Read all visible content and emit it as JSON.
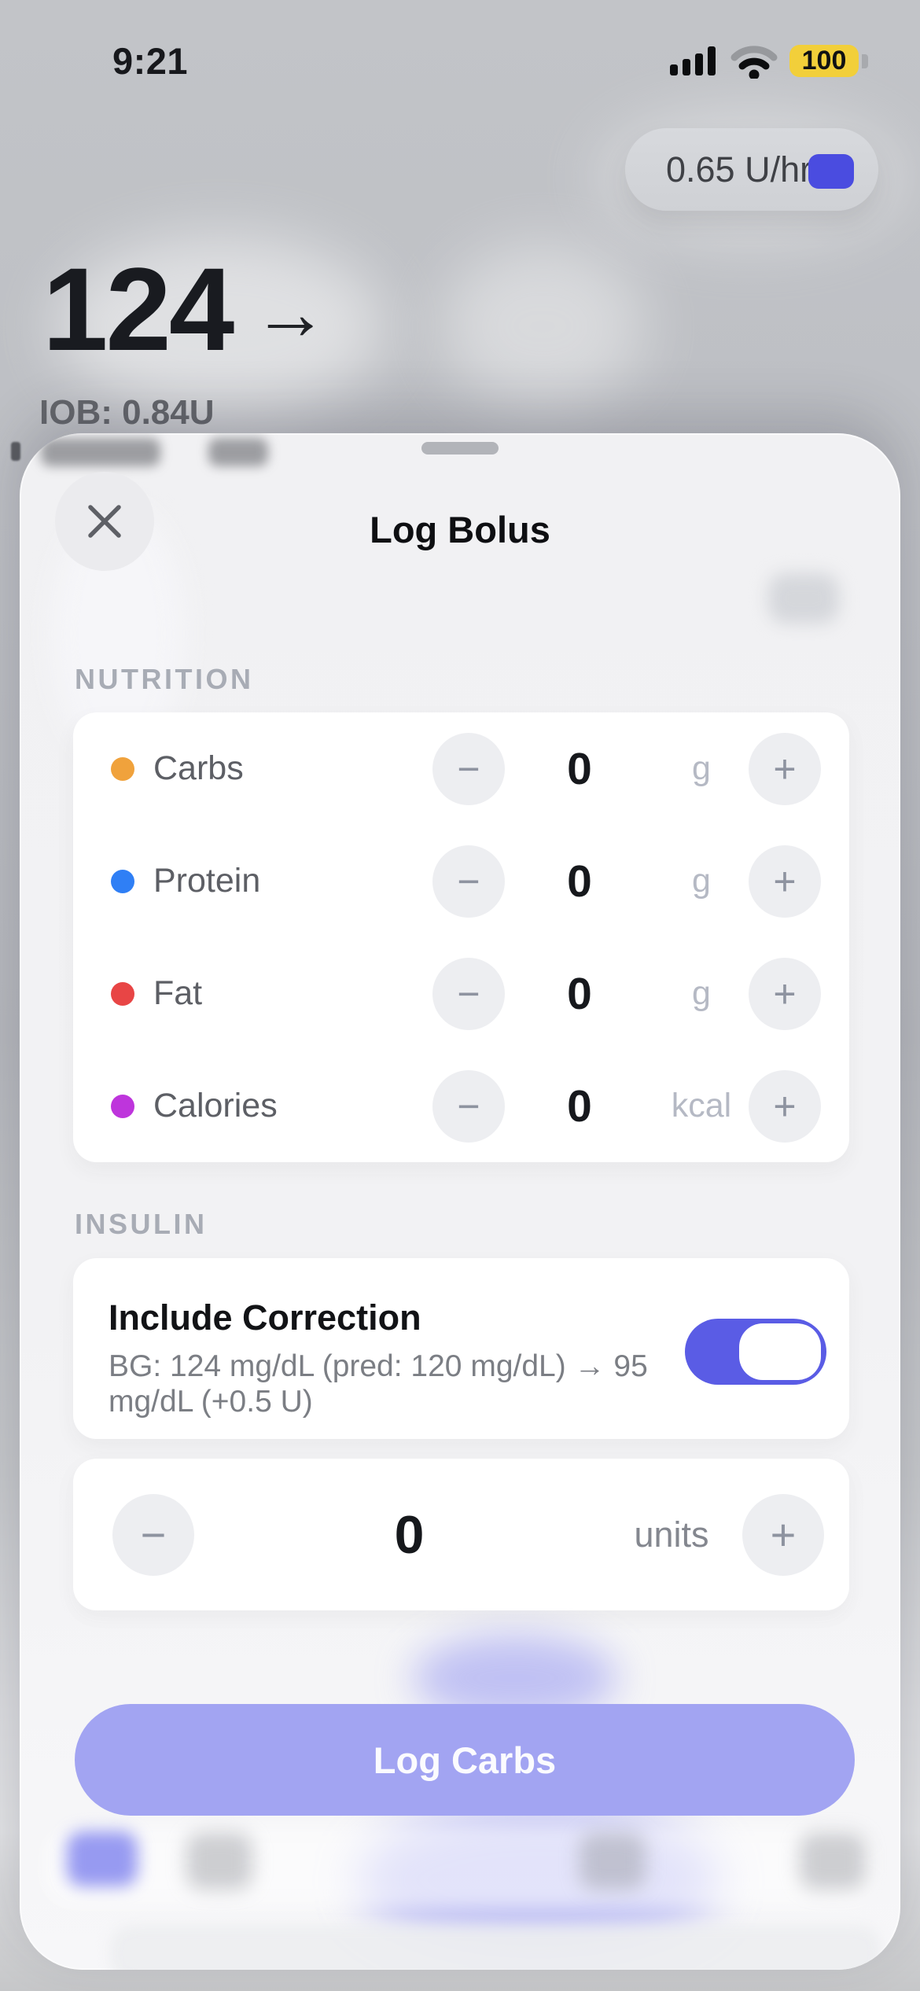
{
  "status_bar": {
    "time": "9:21",
    "battery_level": "100"
  },
  "background_app": {
    "basal_rate": "0.65 U/hr",
    "glucose_value": "124",
    "trend_arrow": "→",
    "iob_text": "IOB: 0.84U"
  },
  "sheet": {
    "title": "Log Bolus",
    "close_icon": "close-x",
    "nutrition": {
      "label": "NUTRITION",
      "minus_glyph": "−",
      "plus_glyph": "+",
      "rows": [
        {
          "name": "Carbs",
          "value": "0",
          "unit": "g",
          "dot_color": "#F0A23C"
        },
        {
          "name": "Protein",
          "value": "0",
          "unit": "g",
          "dot_color": "#2F7FF5"
        },
        {
          "name": "Fat",
          "value": "0",
          "unit": "g",
          "dot_color": "#E84545"
        },
        {
          "name": "Calories",
          "value": "0",
          "unit": "kcal",
          "dot_color": "#BE35DC"
        }
      ]
    },
    "insulin": {
      "label": "INSULIN",
      "correction": {
        "title": "Include Correction",
        "subtitle": "BG: 124 mg/dL (pred: 120 mg/dL) → 95 mg/dL (+0.5 U)",
        "enabled": true
      },
      "dose": {
        "minus_glyph": "−",
        "plus_glyph": "+",
        "value": "0",
        "unit": "units"
      }
    },
    "primary_button": "Log Carbs"
  },
  "colors": {
    "accent_indigo": "#5A5CE5",
    "basal_knob_blue": "#4A4CE0",
    "button_purple": "#A2A4F2",
    "battery_yellow": "#F2CF3A"
  }
}
